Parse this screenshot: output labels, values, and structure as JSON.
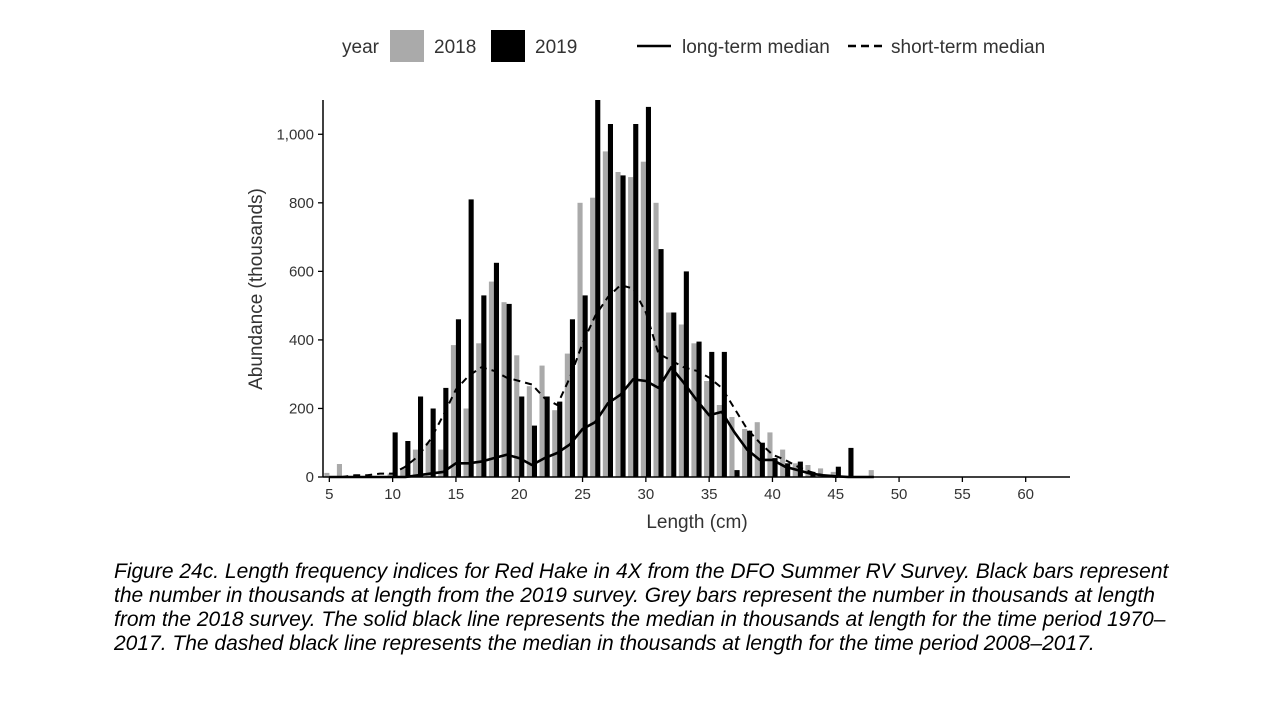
{
  "legend": {
    "year_title": "year",
    "year_2018": "2018",
    "year_2019": "2019",
    "long_term": "long-term median",
    "short_term": "short-term median"
  },
  "colors": {
    "bar_2018": "#aaaaaa",
    "bar_2019": "#000000",
    "line": "#000000",
    "axis": "#000000",
    "text": "#333333"
  },
  "caption": "Figure 24c. Length frequency indices for Red Hake in 4X from the DFO Summer RV Survey. Black bars represent the number in thousands at length from the 2019 survey. Grey bars represent the number in thousands at length from the 2018 survey. The solid black line represents the median in thousands at length for the time period 1970–2017. The dashed black line represents the median in thousands at length for the time period 2008–2017.",
  "chart_data": {
    "type": "bar",
    "xlabel": "Length (cm)",
    "ylabel": "Abundance (thousands)",
    "xlim": [
      4.5,
      63.5
    ],
    "ylim": [
      0,
      1100
    ],
    "xticks": [
      5,
      10,
      15,
      20,
      25,
      30,
      35,
      40,
      45,
      50,
      55,
      60
    ],
    "yticks": [
      0,
      200,
      400,
      600,
      800,
      1000
    ],
    "ytick_labels": [
      "0",
      "200",
      "400",
      "600",
      "800",
      "1,000"
    ],
    "grid": false,
    "legend_position": "top",
    "x": [
      5,
      6,
      7,
      8,
      9,
      10,
      11,
      12,
      13,
      14,
      15,
      16,
      17,
      18,
      19,
      20,
      21,
      22,
      23,
      24,
      25,
      26,
      27,
      28,
      29,
      30,
      31,
      32,
      33,
      34,
      35,
      36,
      37,
      38,
      39,
      40,
      41,
      42,
      43,
      44,
      45,
      46,
      47,
      48
    ],
    "series": [
      {
        "name": "2018",
        "kind": "bar",
        "values": [
          12,
          38,
          2,
          0,
          2,
          10,
          25,
          80,
          100,
          80,
          385,
          200,
          390,
          570,
          510,
          355,
          265,
          325,
          195,
          360,
          800,
          815,
          950,
          890,
          875,
          920,
          800,
          480,
          445,
          390,
          280,
          210,
          175,
          140,
          160,
          130,
          80,
          40,
          35,
          25,
          15,
          0,
          0,
          20
        ]
      },
      {
        "name": "2019",
        "kind": "bar",
        "values": [
          0,
          0,
          0,
          0,
          0,
          130,
          105,
          235,
          200,
          260,
          460,
          810,
          530,
          625,
          505,
          235,
          150,
          235,
          220,
          460,
          530,
          1100,
          1030,
          880,
          1030,
          1080,
          665,
          480,
          600,
          395,
          365,
          365,
          20,
          135,
          100,
          55,
          40,
          45,
          15,
          0,
          30,
          85,
          0,
          0
        ]
      },
      {
        "name": "long-term median",
        "kind": "line",
        "style": "solid",
        "values": [
          0,
          0,
          0,
          0,
          0,
          0,
          0,
          5,
          10,
          15,
          40,
          40,
          45,
          55,
          65,
          55,
          35,
          55,
          70,
          95,
          140,
          160,
          215,
          240,
          285,
          280,
          260,
          320,
          275,
          225,
          180,
          190,
          130,
          80,
          50,
          50,
          30,
          20,
          10,
          5,
          2,
          0,
          0,
          0
        ]
      },
      {
        "name": "short-term median",
        "kind": "line",
        "style": "dashed",
        "values": [
          0,
          0,
          5,
          5,
          10,
          10,
          30,
          60,
          110,
          180,
          255,
          295,
          320,
          310,
          290,
          280,
          270,
          230,
          210,
          290,
          390,
          470,
          525,
          560,
          550,
          480,
          360,
          340,
          320,
          310,
          290,
          260,
          200,
          140,
          100,
          65,
          50,
          30,
          15,
          5,
          0,
          0,
          0,
          0
        ]
      }
    ]
  }
}
